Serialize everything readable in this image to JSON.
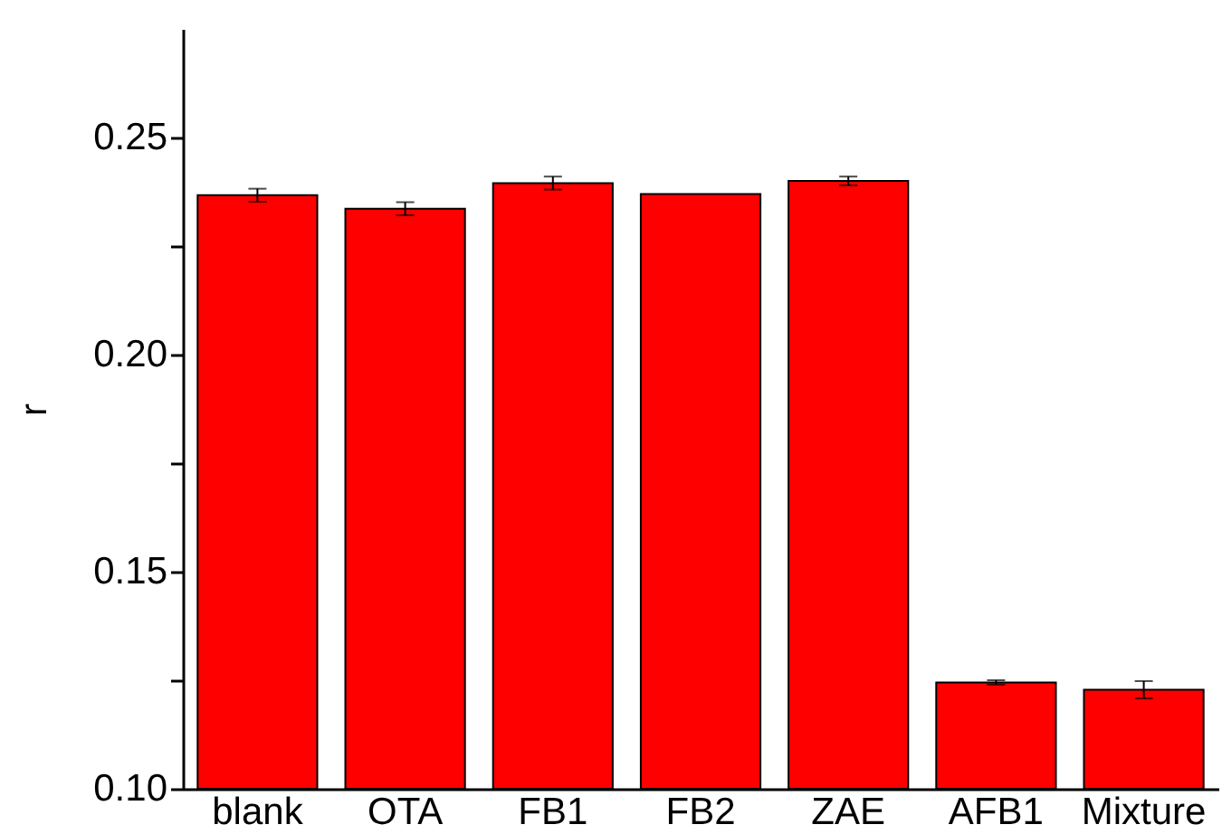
{
  "chart_data": {
    "type": "bar",
    "ylabel": "r",
    "categories": [
      "blank",
      "OTA",
      "FB1",
      "FB2",
      "ZAE",
      "AFB1",
      "Mixture"
    ],
    "values": [
      0.2367,
      0.2336,
      0.2395,
      0.237,
      0.24,
      0.1245,
      0.1228
    ],
    "errors": [
      0.0015,
      0.0015,
      0.0015,
      null,
      0.001,
      0.0005,
      0.002
    ],
    "color": "#ff0000",
    "ylim": [
      0.1,
      0.275
    ],
    "yticks": [
      {
        "value": 0.1,
        "label": "0.10"
      },
      {
        "value": 0.125,
        "label": null
      },
      {
        "value": 0.15,
        "label": "0.15"
      },
      {
        "value": 0.175,
        "label": null
      },
      {
        "value": 0.2,
        "label": "0.20"
      },
      {
        "value": 0.225,
        "label": null
      },
      {
        "value": 0.25,
        "label": "0.25"
      }
    ],
    "grid": false
  }
}
